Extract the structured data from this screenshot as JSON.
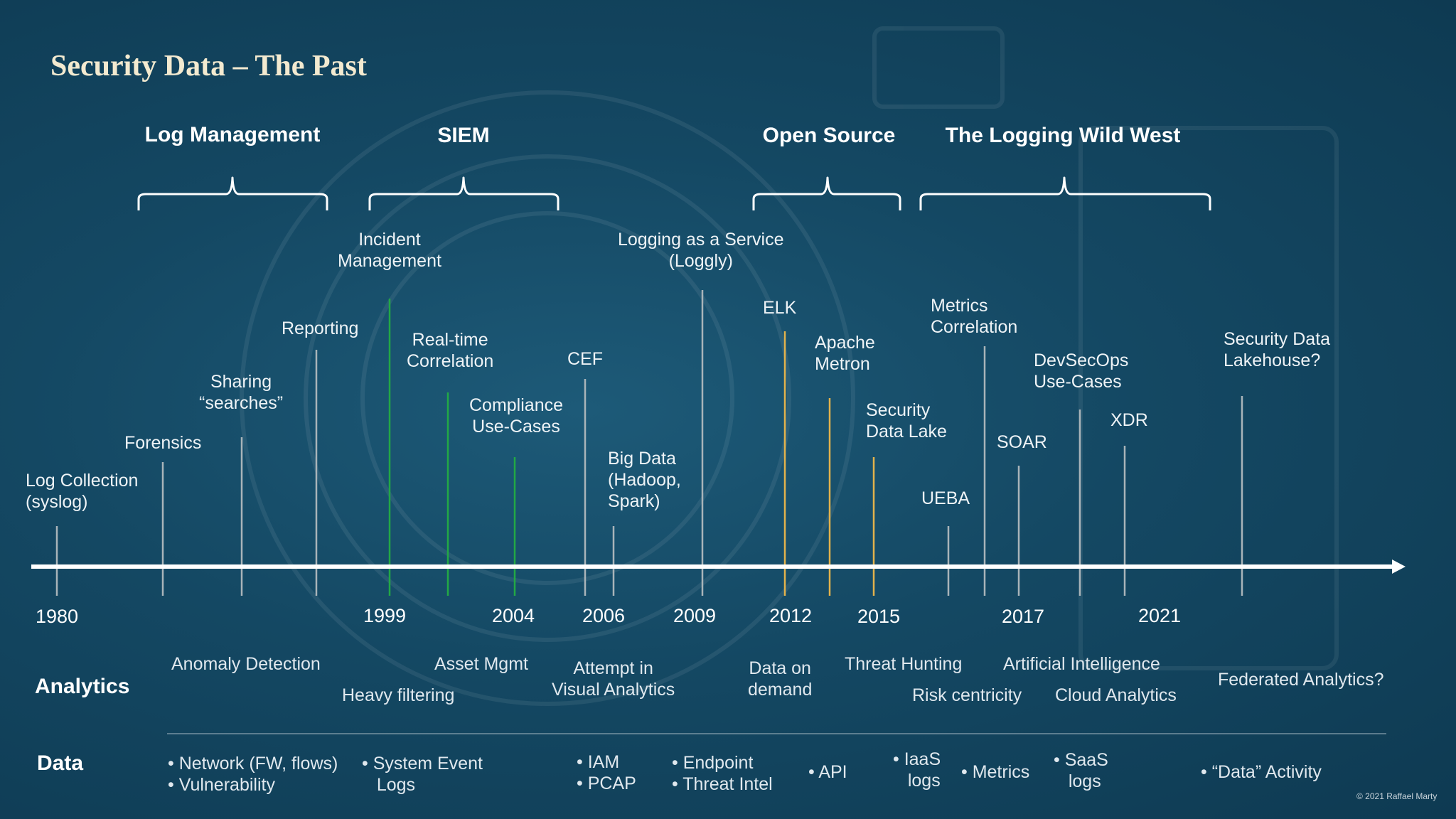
{
  "title": "Security Data – The Past",
  "eras": [
    "Log Management",
    "SIEM",
    "Open Source",
    "The Logging Wild West"
  ],
  "events": [
    "Log Collection\n(syslog)",
    "Forensics",
    "Sharing\n“searches”",
    "Reporting",
    "Incident\nManagement",
    "Real-time\nCorrelation",
    "Compliance\nUse-Cases",
    "CEF",
    "Big Data\n(Hadoop,\nSpark)",
    "Logging as a Service\n(Loggly)",
    "ELK",
    "Apache\nMetron",
    "Security\nData Lake",
    "UEBA",
    "Metrics\nCorrelation",
    "SOAR",
    "DevSecOps\nUse-Cases",
    "XDR",
    "Security Data\nLakehouse?"
  ],
  "years": [
    "1980",
    "1999",
    "2004",
    "2006",
    "2009",
    "2012",
    "2015",
    "2017",
    "2021"
  ],
  "analytics": {
    "heading": "Analytics",
    "items": [
      "Anomaly Detection",
      "Heavy filtering",
      "Asset Mgmt",
      "Attempt in\nVisual Analytics",
      "Data on\ndemand",
      "Threat Hunting",
      "Risk centricity",
      "Artificial Intelligence",
      "Cloud Analytics",
      "Federated Analytics?"
    ]
  },
  "data_row": {
    "heading": "Data",
    "items": [
      "• Network (FW, flows)\n• Vulnerability",
      "• System Event\n   Logs",
      "• IAM\n• PCAP",
      "• Endpoint\n• Threat Intel",
      "• API",
      "• IaaS\n   logs",
      "• Metrics",
      "• SaaS\n   logs",
      "• “Data” Activity"
    ]
  },
  "copyright": "© 2021 Raffael Marty",
  "colors": {
    "background": "#144863",
    "title": "#f3ead0",
    "axis": "#ffffff",
    "tick_gray": "#a9b4b9",
    "tick_green": "#22a845",
    "tick_yellow": "#e2b24c"
  }
}
